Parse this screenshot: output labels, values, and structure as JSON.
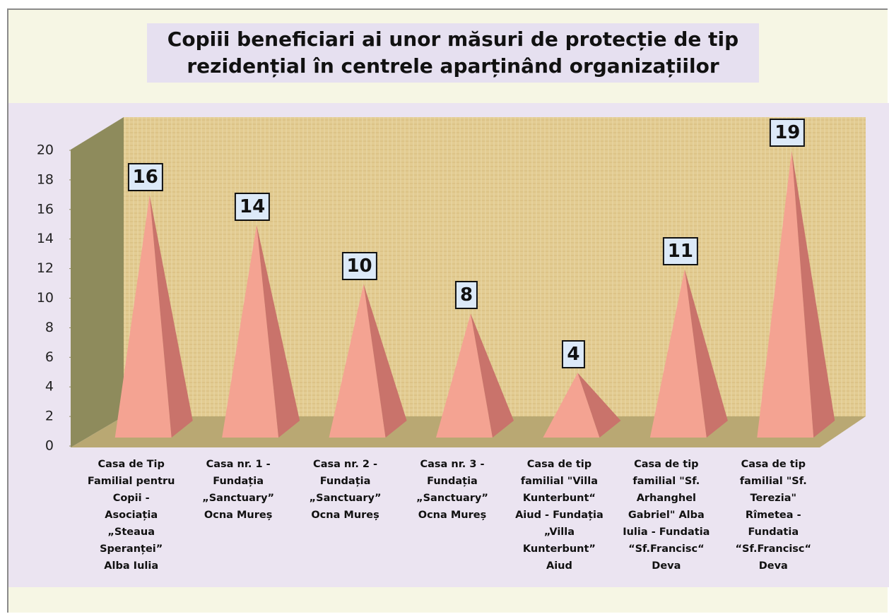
{
  "chart_data": {
    "type": "bar3d-pyramid",
    "title": "Copiii beneficiari ai unor măsuri de protecție de tip rezidențial în centrele aparținând organizațiilor",
    "categories": [
      "Casa de Tip Familial pentru Copii - Asociația „Steaua Speranței” Alba Iulia",
      "Casa nr. 1 - Fundația „Sanctuary” Ocna Mureș",
      "Casa nr. 2 - Fundația „Sanctuary” Ocna Mureș",
      "Casa nr. 3 - Fundația „Sanctuary” Ocna Mureș",
      "Casa de tip familial \"Villa Kunterbunt“ Aiud - Fundația „Villa Kunterbunt” Aiud",
      "Casa de tip familial \"Sf. Arhanghel Gabriel\" Alba Iulia - Fundatia “Sf.Francisc“ Deva",
      "Casa de tip familial \"Sf. Terezia\" Rîmetea - Fundatia “Sf.Francisc“ Deva"
    ],
    "values": [
      16,
      14,
      10,
      8,
      4,
      11,
      19
    ],
    "color": "#f4a392",
    "ylim": [
      0,
      20
    ],
    "yticks": [
      0,
      2,
      4,
      6,
      8,
      10,
      12,
      14,
      16,
      18,
      20
    ],
    "grid": false
  }
}
